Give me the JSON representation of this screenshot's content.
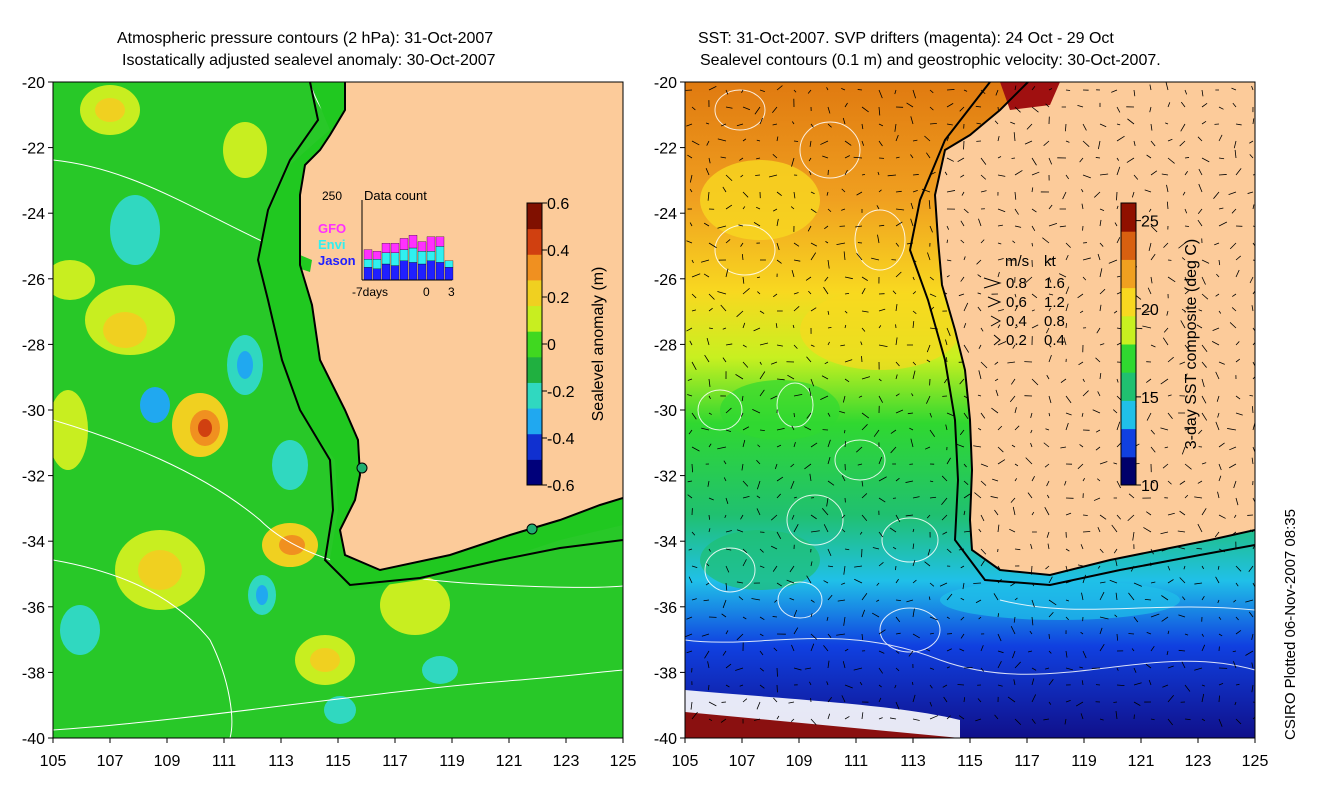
{
  "left_panel": {
    "title_line1": "Atmospheric pressure contours (2 hPa): 31-Oct-2007",
    "title_line2": "Isostatically adjusted sealevel anomaly: 30-Oct-2007",
    "y_ticks": [
      "-20",
      "-22",
      "-24",
      "-26",
      "-28",
      "-30",
      "-32",
      "-34",
      "-36",
      "-38",
      "-40"
    ],
    "x_ticks": [
      "105",
      "107",
      "109",
      "111",
      "113",
      "115",
      "117",
      "119",
      "121",
      "123",
      "125"
    ],
    "colorbar": {
      "label": "Sealevel anomaly (m)",
      "ticks": [
        "0.6",
        "0.4",
        "0.2",
        "0",
        "-0.2",
        "-0.4",
        "-0.6"
      ],
      "colors": [
        "#00007a",
        "#1030d0",
        "#20a8f0",
        "#30d8c0",
        "#20b040",
        "#40d820",
        "#c8ee20",
        "#f0d020",
        "#f09020",
        "#d04010",
        "#801000"
      ]
    },
    "data_count": {
      "title": "Data count",
      "max_label": "250",
      "series": [
        "GFO",
        "Envi",
        "Jason"
      ],
      "series_colors": [
        "#ff30ff",
        "#30f0f0",
        "#2020ff"
      ],
      "x_labels": [
        "-7days",
        "0",
        "3"
      ],
      "gfo": [
        30,
        25,
        30,
        30,
        35,
        40,
        30,
        45,
        30,
        0
      ],
      "envi": [
        25,
        30,
        35,
        40,
        35,
        45,
        40,
        30,
        50,
        20
      ],
      "jason": [
        40,
        35,
        50,
        45,
        60,
        55,
        50,
        60,
        55,
        40
      ]
    }
  },
  "right_panel": {
    "title_line1": "SST: 31-Oct-2007. SVP drifters (magenta): 24 Oct - 29 Oct",
    "title_line2": "Sealevel contours (0.1 m) and geostrophic velocity: 30-Oct-2007.",
    "y_ticks": [
      "-20",
      "-22",
      "-24",
      "-26",
      "-28",
      "-30",
      "-32",
      "-34",
      "-36",
      "-38",
      "-40"
    ],
    "x_ticks": [
      "105",
      "107",
      "109",
      "111",
      "113",
      "115",
      "117",
      "119",
      "121",
      "123",
      "125"
    ],
    "colorbar": {
      "label": "3-day SST composite (deg C)",
      "ticks": [
        "25",
        "20",
        "15",
        "10"
      ],
      "colors": [
        "#00006a",
        "#1040e0",
        "#20c0e8",
        "#20c070",
        "#30d830",
        "#c8f020",
        "#f8d820",
        "#f0a020",
        "#d86010",
        "#901000"
      ]
    },
    "velocity_legend": {
      "header_ms": "m/s",
      "header_kt": "kt",
      "rows": [
        {
          "ms": "0.8",
          "kt": "1.6"
        },
        {
          "ms": "0.6",
          "kt": "1.2"
        },
        {
          "ms": "0.4",
          "kt": "0.8"
        },
        {
          "ms": "0.2",
          "kt": "0.4"
        }
      ]
    }
  },
  "credit": "CSIRO Plotted 06-Nov-2007 08:35",
  "colors": {
    "land": "#fccb9a",
    "shelf": "#20c820",
    "coast": "#000000"
  }
}
